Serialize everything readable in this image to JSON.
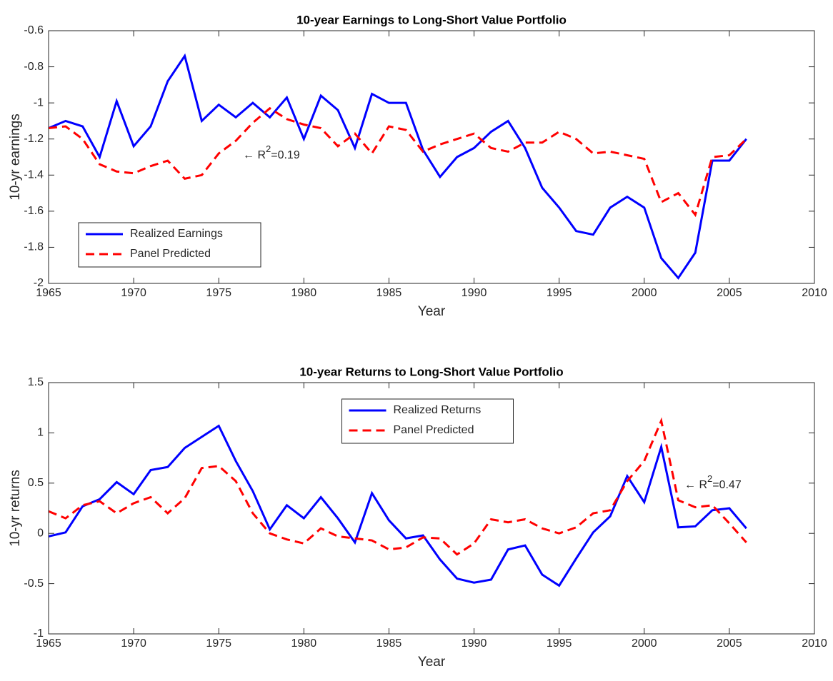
{
  "chart_data": [
    {
      "type": "line",
      "title": "10-year Earnings to Long-Short Value Portfolio",
      "xlabel": "Year",
      "ylabel": "10-yr earnings",
      "x": [
        1965,
        1966,
        1967,
        1968,
        1969,
        1970,
        1971,
        1972,
        1973,
        1974,
        1975,
        1976,
        1977,
        1978,
        1979,
        1980,
        1981,
        1982,
        1983,
        1984,
        1985,
        1986,
        1987,
        1988,
        1989,
        1990,
        1991,
        1992,
        1993,
        1994,
        1995,
        1996,
        1997,
        1998,
        1999,
        2000,
        2001,
        2002,
        2003,
        2004,
        2005,
        2006
      ],
      "series": [
        {
          "name": "Realized Earnings",
          "color": "#0000ff",
          "style": "solid",
          "values": [
            -1.14,
            -1.1,
            -1.13,
            -1.3,
            -0.99,
            -1.24,
            -1.13,
            -0.88,
            -0.74,
            -1.1,
            -1.01,
            -1.08,
            -1.0,
            -1.08,
            -0.97,
            -1.2,
            -0.96,
            -1.04,
            -1.25,
            -0.95,
            -1.0,
            -1.0,
            -1.26,
            -1.41,
            -1.3,
            -1.25,
            -1.16,
            -1.1,
            -1.25,
            -1.47,
            -1.58,
            -1.71,
            -1.73,
            -1.58,
            -1.52,
            -1.58,
            -1.86,
            -1.97,
            -1.83,
            -1.32,
            -1.32,
            -1.2
          ]
        },
        {
          "name": "Panel Predicted",
          "color": "#ff0000",
          "style": "dashed",
          "values": [
            -1.14,
            -1.13,
            -1.2,
            -1.34,
            -1.38,
            -1.39,
            -1.35,
            -1.32,
            -1.42,
            -1.4,
            -1.28,
            -1.21,
            -1.11,
            -1.03,
            -1.09,
            -1.12,
            -1.14,
            -1.24,
            -1.17,
            -1.28,
            -1.13,
            -1.15,
            -1.27,
            -1.23,
            -1.2,
            -1.17,
            -1.25,
            -1.27,
            -1.22,
            -1.22,
            -1.16,
            -1.2,
            -1.28,
            -1.27,
            -1.29,
            -1.31,
            -1.55,
            -1.5,
            -1.62,
            -1.3,
            -1.29,
            -1.2
          ]
        }
      ],
      "annotation": {
        "prefix": "← R",
        "superscript": "2",
        "suffix": "=0.19"
      },
      "xlim": [
        1965,
        2010
      ],
      "xticks": [
        1965,
        1970,
        1975,
        1980,
        1985,
        1990,
        1995,
        2000,
        2005,
        2010
      ],
      "ylim": [
        -2,
        -0.6
      ],
      "yticks": [
        -2,
        -1.8,
        -1.6,
        -1.4,
        -1.2,
        -1,
        -0.8,
        -0.6
      ],
      "legend": "lower left"
    },
    {
      "type": "line",
      "title": "10-year Returns to Long-Short Value Portfolio",
      "xlabel": "Year",
      "ylabel": "10-yr returns",
      "x": [
        1965,
        1966,
        1967,
        1968,
        1969,
        1970,
        1971,
        1972,
        1973,
        1974,
        1975,
        1976,
        1977,
        1978,
        1979,
        1980,
        1981,
        1982,
        1983,
        1984,
        1985,
        1986,
        1987,
        1988,
        1989,
        1990,
        1991,
        1992,
        1993,
        1994,
        1995,
        1996,
        1997,
        1998,
        1999,
        2000,
        2001,
        2002,
        2003,
        2004,
        2005,
        2006
      ],
      "series": [
        {
          "name": "Realized Returns",
          "color": "#0000ff",
          "style": "solid",
          "values": [
            -0.03,
            0.01,
            0.27,
            0.34,
            0.51,
            0.39,
            0.63,
            0.66,
            0.85,
            0.96,
            1.07,
            0.72,
            0.42,
            0.04,
            0.28,
            0.15,
            0.36,
            0.15,
            -0.09,
            0.4,
            0.13,
            -0.05,
            -0.02,
            -0.26,
            -0.45,
            -0.49,
            -0.46,
            -0.16,
            -0.12,
            -0.41,
            -0.52,
            -0.25,
            0.01,
            0.17,
            0.57,
            0.31,
            0.86,
            0.06,
            0.07,
            0.23,
            0.25,
            0.05
          ]
        },
        {
          "name": "Panel Predicted",
          "color": "#ff0000",
          "style": "dashed",
          "values": [
            0.22,
            0.15,
            0.28,
            0.32,
            0.2,
            0.3,
            0.36,
            0.2,
            0.35,
            0.65,
            0.67,
            0.52,
            0.2,
            0.0,
            -0.06,
            -0.1,
            0.05,
            -0.03,
            -0.05,
            -0.07,
            -0.16,
            -0.14,
            -0.04,
            -0.05,
            -0.21,
            -0.1,
            0.14,
            0.11,
            0.14,
            0.05,
            0.0,
            0.06,
            0.2,
            0.23,
            0.52,
            0.72,
            1.12,
            0.33,
            0.26,
            0.28,
            0.1,
            -0.09
          ]
        }
      ],
      "annotation": {
        "prefix": "← R",
        "superscript": "2",
        "suffix": "=0.47"
      },
      "xlim": [
        1965,
        2010
      ],
      "xticks": [
        1965,
        1970,
        1975,
        1980,
        1985,
        1990,
        1995,
        2000,
        2005,
        2010
      ],
      "ylim": [
        -1,
        1.5
      ],
      "yticks": [
        -1,
        -0.5,
        0,
        0.5,
        1,
        1.5
      ],
      "legend": "upper center"
    }
  ]
}
